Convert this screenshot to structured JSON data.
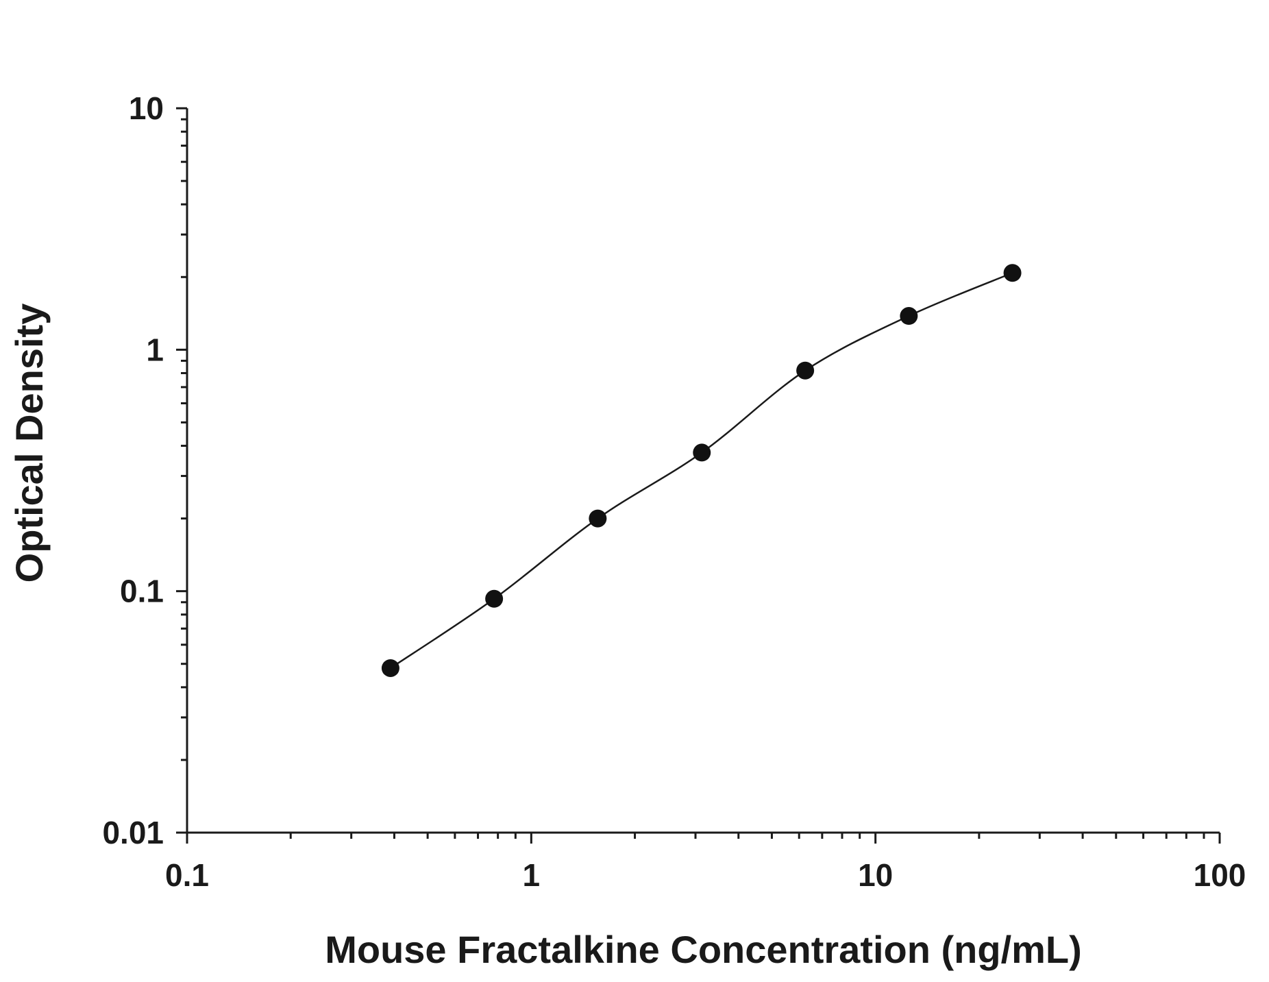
{
  "chart_data": {
    "type": "scatter",
    "xlabel": "Mouse Fractalkine Concentration (ng/mL)",
    "ylabel": "Optical Density",
    "xscale": "log",
    "yscale": "log",
    "xlim": [
      0.1,
      100
    ],
    "ylim": [
      0.01,
      10
    ],
    "x_ticks": [
      "0.1",
      "1",
      "10",
      "100"
    ],
    "y_ticks": [
      "0.01",
      "0.1",
      "1",
      "10"
    ],
    "grid": false,
    "series": [
      {
        "x": [
          0.39,
          0.78,
          1.56,
          3.13,
          6.25,
          12.5,
          25
        ],
        "y": [
          0.048,
          0.093,
          0.2,
          0.375,
          0.82,
          1.38,
          2.08
        ]
      }
    ],
    "fit_curve": true,
    "colors": {
      "marker": "#111111",
      "line": "#1a1a1a"
    }
  }
}
